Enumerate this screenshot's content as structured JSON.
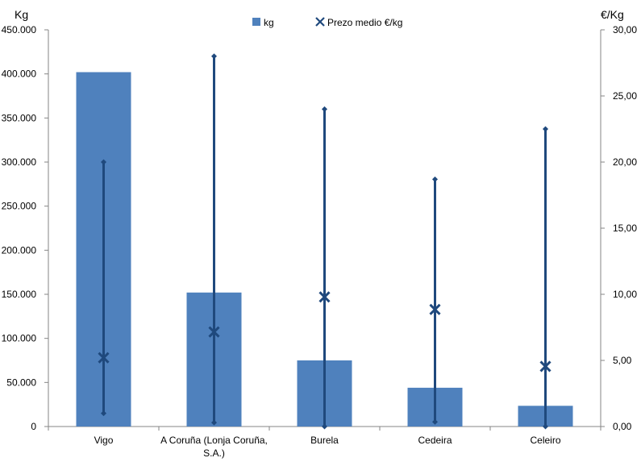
{
  "chart_data": {
    "type": "bar",
    "categories": [
      "Vigo",
      "A Coruña (Lonja Coruña, S.A.)",
      "Burela",
      "Cedeira",
      "Celeiro"
    ],
    "category_labels": [
      [
        "Vigo"
      ],
      [
        "A Coruña (Lonja Coruña,",
        "S.A.)"
      ],
      [
        "Burela"
      ],
      [
        "Cedeira"
      ],
      [
        "Celeiro"
      ]
    ],
    "ylabel_left": "Kg",
    "ylabel_right": "€/Kg",
    "ylim_left": [
      0,
      450000
    ],
    "ylim_right": [
      0,
      30
    ],
    "left_ticks": [
      "0",
      "50.000",
      "100.000",
      "150.000",
      "200.000",
      "250.000",
      "300.000",
      "350.000",
      "400.000",
      "450.000"
    ],
    "right_ticks": [
      "0,00",
      "5,00",
      "10,00",
      "15,00",
      "20,00",
      "25,00",
      "30,00"
    ],
    "series": [
      {
        "name": "kg",
        "axis": "left",
        "kind": "bar",
        "values": [
          402000,
          152000,
          75000,
          44000,
          23500
        ]
      },
      {
        "name": "Prezo medio €/kg",
        "axis": "right",
        "kind": "marker",
        "values": [
          5.2,
          7.15,
          9.8,
          8.85,
          4.55
        ]
      }
    ],
    "range": {
      "axis": "right",
      "high": [
        20.0,
        28.0,
        24.0,
        18.7,
        22.5
      ],
      "low": [
        1.0,
        0.3,
        0.0,
        0.35,
        0.0
      ]
    },
    "legend_position": "top-center",
    "colors": {
      "bar": "#4f81bd",
      "marker": "#1f497d",
      "axis": "#868686"
    }
  }
}
